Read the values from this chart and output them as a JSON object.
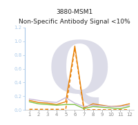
{
  "title_line1": "3880-MSM1",
  "title_line2": "Non-Specific Antibody Signal <10%",
  "x": [
    1,
    2,
    3,
    4,
    5,
    6,
    7,
    8,
    9,
    10,
    11,
    12
  ],
  "solid_orange": [
    0.14,
    0.11,
    0.1,
    0.08,
    0.12,
    0.93,
    0.03,
    0.09,
    0.07,
    0.05,
    0.06,
    0.09
  ],
  "dashed_orange": [
    0.01,
    0.01,
    0.01,
    0.01,
    0.01,
    0.9,
    0.005,
    0.005,
    0.005,
    0.005,
    0.005,
    0.005
  ],
  "solid_green": [
    0.12,
    0.09,
    0.08,
    0.07,
    0.08,
    0.08,
    0.02,
    0.05,
    0.04,
    0.03,
    0.02,
    0.05
  ],
  "solid_purple": [
    0.16,
    0.14,
    0.12,
    0.11,
    0.18,
    0.1,
    0.05,
    0.07,
    0.06,
    0.05,
    0.05,
    0.07
  ],
  "ylim": [
    0,
    1.2
  ],
  "xlim": [
    0.5,
    12.5
  ],
  "yticks": [
    0,
    0.2,
    0.4,
    0.6,
    0.8,
    1.0,
    1.2
  ],
  "xticks": [
    1,
    2,
    3,
    4,
    5,
    6,
    7,
    8,
    9,
    10,
    11,
    12
  ],
  "color_orange": "#E8820A",
  "color_green": "#7DC242",
  "color_purple": "#C8B8D8",
  "color_yaxis": "#A8C8E8",
  "watermark_color": "#DCDCE8",
  "title_fontsize": 6.5,
  "tick_fontsize": 5.0,
  "background_color": "#FFFFFF"
}
